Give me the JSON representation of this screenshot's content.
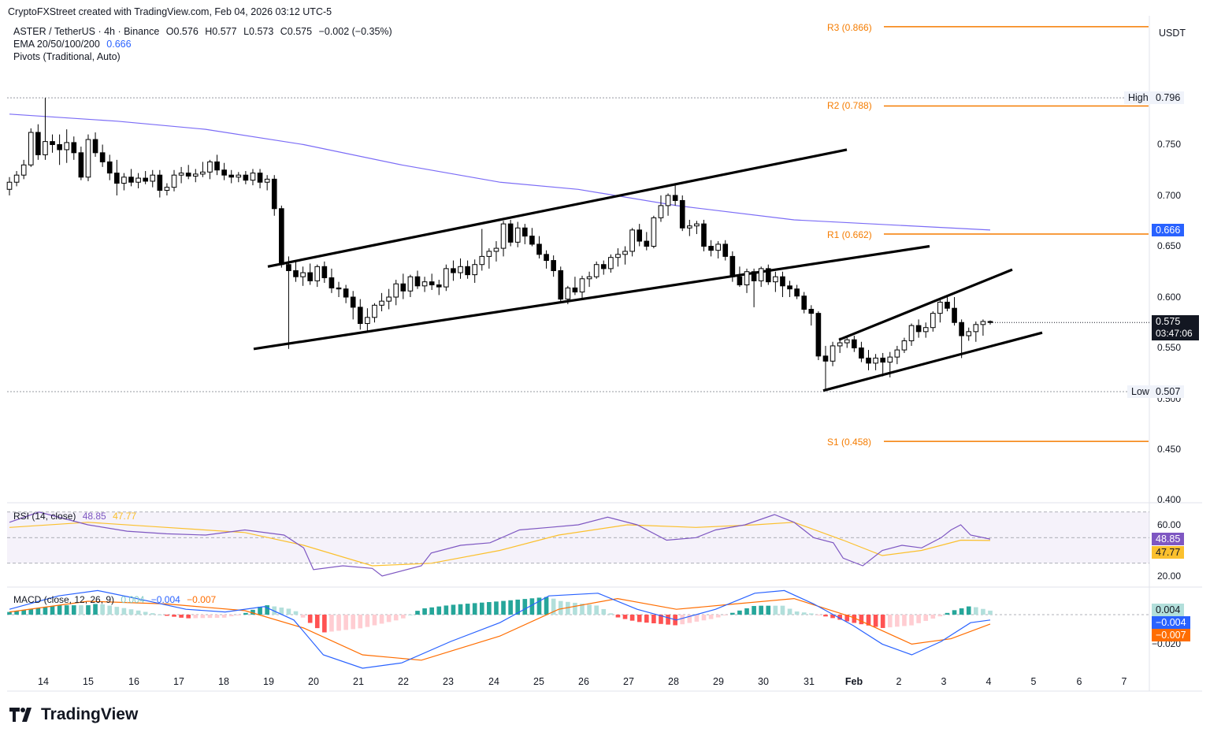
{
  "header": {
    "credit": "CryptoFXStreet created with TradingView.com, Feb 04, 2026 03:12 UTC-5",
    "symbol": "ASTER / TetherUS · 4h · Binance",
    "open": "O0.576",
    "high": "H0.577",
    "low": "L0.573",
    "close": "C0.575",
    "change": "−0.002 (−0.35%)",
    "ema_label": "EMA 20/50/100/200",
    "ema_value": "0.666",
    "pivots_label": "Pivots (Traditional, Auto)"
  },
  "currency": "USDT",
  "price_axis": [
    "0.750",
    "0.700",
    "0.650",
    "0.600",
    "0.550",
    "0.500",
    "0.450",
    "0.400"
  ],
  "rsi_axis": [
    "60.00",
    "20.00"
  ],
  "macd_axis": [
    "−0.020"
  ],
  "pivots": [
    {
      "label": "R3 (0.866)",
      "value": 0.866
    },
    {
      "label": "R2 (0.788)",
      "value": 0.788
    },
    {
      "label": "R1 (0.662)",
      "value": 0.662
    },
    {
      "label": "S1 (0.458)",
      "value": 0.458
    }
  ],
  "badges": {
    "high_label": "High",
    "high_value": "0.796",
    "low_label": "Low",
    "low_value": "0.507",
    "ema_value": "0.666",
    "last_price": "0.575",
    "countdown": "03:47:06",
    "rsi_value": "48.85",
    "rsi_ma": "47.77",
    "macd_hist": "0.004",
    "macd_line": "−0.004",
    "macd_signal": "−0.007"
  },
  "rsi": {
    "label": "RSI (14, close)",
    "value": "48.85",
    "ma": "47.77"
  },
  "macd": {
    "label": "MACD (close, 12, 26, 9)",
    "hist": "0.004",
    "line": "−0.004",
    "signal": "−0.007"
  },
  "x_axis": [
    "14",
    "15",
    "16",
    "17",
    "18",
    "19",
    "20",
    "21",
    "22",
    "23",
    "24",
    "25",
    "26",
    "27",
    "28",
    "29",
    "30",
    "31",
    "Feb",
    "2",
    "3",
    "4",
    "5",
    "6",
    "7"
  ],
  "brand": "TradingView",
  "colors": {
    "bull": "#ffffff",
    "bear": "#000000",
    "ema200": "#7b6cf6",
    "pivot": "#f57c00",
    "rsi": "#7e57c2",
    "rsi_ma": "#fbc02d",
    "macd": "#2962ff",
    "signal": "#ff6d00",
    "hist_pos": "#26a69a",
    "hist_pos_light": "#b2dfdb",
    "hist_neg": "#ff5252",
    "hist_neg_light": "#ffcdd2"
  },
  "chart_data": {
    "type": "candlestick",
    "timeframe": "4h",
    "ylim": [
      0.4,
      0.87
    ],
    "x_range": [
      "Jan 13",
      "Feb 7"
    ],
    "ohlc": [
      [
        0.706,
        0.718,
        0.7,
        0.713
      ],
      [
        0.713,
        0.724,
        0.709,
        0.72
      ],
      [
        0.72,
        0.735,
        0.716,
        0.73
      ],
      [
        0.73,
        0.766,
        0.728,
        0.762
      ],
      [
        0.762,
        0.77,
        0.735,
        0.74
      ],
      [
        0.74,
        0.796,
        0.735,
        0.753
      ],
      [
        0.753,
        0.76,
        0.742,
        0.75
      ],
      [
        0.75,
        0.76,
        0.73,
        0.745
      ],
      [
        0.745,
        0.765,
        0.732,
        0.752
      ],
      [
        0.752,
        0.758,
        0.735,
        0.742
      ],
      [
        0.742,
        0.748,
        0.715,
        0.718
      ],
      [
        0.718,
        0.76,
        0.714,
        0.755
      ],
      [
        0.755,
        0.762,
        0.738,
        0.742
      ],
      [
        0.742,
        0.75,
        0.728,
        0.733
      ],
      [
        0.733,
        0.74,
        0.715,
        0.722
      ],
      [
        0.722,
        0.735,
        0.7,
        0.712
      ],
      [
        0.712,
        0.722,
        0.705,
        0.718
      ],
      [
        0.718,
        0.726,
        0.709,
        0.713
      ],
      [
        0.713,
        0.722,
        0.707,
        0.717
      ],
      [
        0.717,
        0.724,
        0.711,
        0.714
      ],
      [
        0.714,
        0.725,
        0.708,
        0.72
      ],
      [
        0.72,
        0.725,
        0.698,
        0.705
      ],
      [
        0.705,
        0.712,
        0.7,
        0.708
      ],
      [
        0.708,
        0.725,
        0.704,
        0.72
      ],
      [
        0.72,
        0.728,
        0.712,
        0.722
      ],
      [
        0.722,
        0.73,
        0.716,
        0.719
      ],
      [
        0.719,
        0.726,
        0.713,
        0.721
      ],
      [
        0.721,
        0.733,
        0.718,
        0.723
      ],
      [
        0.723,
        0.735,
        0.716,
        0.733
      ],
      [
        0.733,
        0.74,
        0.72,
        0.725
      ],
      [
        0.725,
        0.732,
        0.715,
        0.72
      ],
      [
        0.72,
        0.725,
        0.712,
        0.718
      ],
      [
        0.718,
        0.723,
        0.713,
        0.72
      ],
      [
        0.72,
        0.724,
        0.711,
        0.715
      ],
      [
        0.715,
        0.726,
        0.71,
        0.722
      ],
      [
        0.722,
        0.726,
        0.707,
        0.713
      ],
      [
        0.713,
        0.72,
        0.705,
        0.716
      ],
      [
        0.716,
        0.72,
        0.68,
        0.687
      ],
      [
        0.687,
        0.69,
        0.629,
        0.632
      ],
      [
        0.632,
        0.64,
        0.549,
        0.626
      ],
      [
        0.626,
        0.635,
        0.615,
        0.62
      ],
      [
        0.62,
        0.63,
        0.611,
        0.624
      ],
      [
        0.624,
        0.633,
        0.612,
        0.616
      ],
      [
        0.616,
        0.632,
        0.61,
        0.63
      ],
      [
        0.63,
        0.635,
        0.614,
        0.619
      ],
      [
        0.619,
        0.628,
        0.604,
        0.609
      ],
      [
        0.609,
        0.615,
        0.6,
        0.608
      ],
      [
        0.608,
        0.612,
        0.594,
        0.6
      ],
      [
        0.6,
        0.606,
        0.578,
        0.59
      ],
      [
        0.59,
        0.598,
        0.568,
        0.574
      ],
      [
        0.574,
        0.589,
        0.566,
        0.58
      ],
      [
        0.58,
        0.594,
        0.575,
        0.592
      ],
      [
        0.592,
        0.604,
        0.586,
        0.596
      ],
      [
        0.596,
        0.608,
        0.588,
        0.6
      ],
      [
        0.6,
        0.617,
        0.592,
        0.613
      ],
      [
        0.613,
        0.623,
        0.598,
        0.606
      ],
      [
        0.606,
        0.622,
        0.6,
        0.62
      ],
      [
        0.62,
        0.626,
        0.608,
        0.611
      ],
      [
        0.611,
        0.62,
        0.605,
        0.615
      ],
      [
        0.615,
        0.623,
        0.607,
        0.612
      ],
      [
        0.612,
        0.617,
        0.602,
        0.61
      ],
      [
        0.61,
        0.632,
        0.606,
        0.628
      ],
      [
        0.628,
        0.636,
        0.616,
        0.624
      ],
      [
        0.624,
        0.638,
        0.618,
        0.63
      ],
      [
        0.63,
        0.636,
        0.618,
        0.622
      ],
      [
        0.622,
        0.637,
        0.614,
        0.632
      ],
      [
        0.632,
        0.667,
        0.626,
        0.64
      ],
      [
        0.64,
        0.648,
        0.628,
        0.645
      ],
      [
        0.645,
        0.655,
        0.635,
        0.648
      ],
      [
        0.648,
        0.675,
        0.64,
        0.672
      ],
      [
        0.672,
        0.676,
        0.65,
        0.654
      ],
      [
        0.654,
        0.674,
        0.649,
        0.668
      ],
      [
        0.668,
        0.672,
        0.652,
        0.66
      ],
      [
        0.66,
        0.668,
        0.65,
        0.652
      ],
      [
        0.652,
        0.66,
        0.638,
        0.642
      ],
      [
        0.642,
        0.646,
        0.628,
        0.636
      ],
      [
        0.636,
        0.641,
        0.62,
        0.626
      ],
      [
        0.626,
        0.63,
        0.595,
        0.598
      ],
      [
        0.598,
        0.611,
        0.593,
        0.609
      ],
      [
        0.609,
        0.62,
        0.602,
        0.605
      ],
      [
        0.605,
        0.621,
        0.599,
        0.618
      ],
      [
        0.618,
        0.625,
        0.61,
        0.62
      ],
      [
        0.62,
        0.635,
        0.618,
        0.632
      ],
      [
        0.632,
        0.636,
        0.622,
        0.628
      ],
      [
        0.628,
        0.642,
        0.624,
        0.639
      ],
      [
        0.639,
        0.648,
        0.63,
        0.642
      ],
      [
        0.642,
        0.65,
        0.632,
        0.645
      ],
      [
        0.645,
        0.668,
        0.64,
        0.666
      ],
      [
        0.666,
        0.672,
        0.65,
        0.655
      ],
      [
        0.655,
        0.664,
        0.646,
        0.65
      ],
      [
        0.65,
        0.68,
        0.648,
        0.678
      ],
      [
        0.678,
        0.7,
        0.674,
        0.69
      ],
      [
        0.69,
        0.702,
        0.68,
        0.7
      ],
      [
        0.7,
        0.712,
        0.69,
        0.695
      ],
      [
        0.695,
        0.7,
        0.665,
        0.668
      ],
      [
        0.668,
        0.676,
        0.66,
        0.67
      ],
      [
        0.67,
        0.675,
        0.662,
        0.672
      ],
      [
        0.672,
        0.676,
        0.645,
        0.65
      ],
      [
        0.65,
        0.656,
        0.64,
        0.646
      ],
      [
        0.646,
        0.655,
        0.638,
        0.652
      ],
      [
        0.652,
        0.656,
        0.636,
        0.64
      ],
      [
        0.64,
        0.645,
        0.615,
        0.62
      ],
      [
        0.62,
        0.63,
        0.61,
        0.612
      ],
      [
        0.612,
        0.628,
        0.604,
        0.625
      ],
      [
        0.625,
        0.628,
        0.59,
        0.616
      ],
      [
        0.616,
        0.63,
        0.61,
        0.628
      ],
      [
        0.628,
        0.632,
        0.612,
        0.615
      ],
      [
        0.615,
        0.625,
        0.605,
        0.62
      ],
      [
        0.62,
        0.625,
        0.6,
        0.611
      ],
      [
        0.611,
        0.616,
        0.6,
        0.608
      ],
      [
        0.608,
        0.612,
        0.598,
        0.601
      ],
      [
        0.601,
        0.605,
        0.584,
        0.588
      ],
      [
        0.588,
        0.592,
        0.572,
        0.584
      ],
      [
        0.584,
        0.586,
        0.538,
        0.542
      ],
      [
        0.542,
        0.552,
        0.508,
        0.537
      ],
      [
        0.537,
        0.556,
        0.532,
        0.552
      ],
      [
        0.552,
        0.56,
        0.545,
        0.555
      ],
      [
        0.555,
        0.562,
        0.55,
        0.558
      ],
      [
        0.558,
        0.562,
        0.546,
        0.55
      ],
      [
        0.55,
        0.556,
        0.536,
        0.54
      ],
      [
        0.54,
        0.548,
        0.528,
        0.535
      ],
      [
        0.535,
        0.544,
        0.528,
        0.54
      ],
      [
        0.54,
        0.545,
        0.522,
        0.536
      ],
      [
        0.536,
        0.546,
        0.521,
        0.541
      ],
      [
        0.541,
        0.552,
        0.534,
        0.548
      ],
      [
        0.548,
        0.56,
        0.545,
        0.557
      ],
      [
        0.557,
        0.574,
        0.552,
        0.572
      ],
      [
        0.572,
        0.578,
        0.56,
        0.566
      ],
      [
        0.566,
        0.575,
        0.56,
        0.57
      ],
      [
        0.57,
        0.586,
        0.566,
        0.584
      ],
      [
        0.584,
        0.598,
        0.575,
        0.595
      ],
      [
        0.595,
        0.601,
        0.586,
        0.589
      ],
      [
        0.589,
        0.6,
        0.572,
        0.575
      ],
      [
        0.575,
        0.578,
        0.54,
        0.562
      ],
      [
        0.562,
        0.57,
        0.557,
        0.566
      ],
      [
        0.566,
        0.576,
        0.556,
        0.573
      ],
      [
        0.573,
        0.578,
        0.562,
        0.576
      ],
      [
        0.576,
        0.577,
        0.573,
        0.575
      ]
    ],
    "ema200": [
      [
        0,
        0.78
      ],
      [
        0.11,
        0.773
      ],
      [
        0.2,
        0.765
      ],
      [
        0.3,
        0.75
      ],
      [
        0.4,
        0.73
      ],
      [
        0.5,
        0.713
      ],
      [
        0.58,
        0.706
      ],
      [
        0.68,
        0.69
      ],
      [
        0.8,
        0.676
      ],
      [
        1.0,
        0.666
      ]
    ],
    "annotations": [
      "ascending channel Jan 19–Jan 29",
      "rising wedge Jan 31–Feb 4"
    ],
    "rsi_series": [
      [
        0,
        62
      ],
      [
        0.03,
        70
      ],
      [
        0.06,
        64
      ],
      [
        0.08,
        60
      ],
      [
        0.12,
        55
      ],
      [
        0.16,
        53
      ],
      [
        0.2,
        52
      ],
      [
        0.24,
        56
      ],
      [
        0.28,
        52
      ],
      [
        0.3,
        42
      ],
      [
        0.31,
        25
      ],
      [
        0.34,
        28
      ],
      [
        0.37,
        26
      ],
      [
        0.38,
        20
      ],
      [
        0.42,
        28
      ],
      [
        0.43,
        38
      ],
      [
        0.46,
        44
      ],
      [
        0.49,
        46
      ],
      [
        0.52,
        56
      ],
      [
        0.55,
        58
      ],
      [
        0.58,
        60
      ],
      [
        0.61,
        66
      ],
      [
        0.64,
        60
      ],
      [
        0.67,
        48
      ],
      [
        0.7,
        50
      ],
      [
        0.72,
        56
      ],
      [
        0.75,
        60
      ],
      [
        0.78,
        68
      ],
      [
        0.8,
        62
      ],
      [
        0.82,
        50
      ],
      [
        0.84,
        46
      ],
      [
        0.85,
        34
      ],
      [
        0.87,
        28
      ],
      [
        0.89,
        40
      ],
      [
        0.91,
        44
      ],
      [
        0.93,
        42
      ],
      [
        0.95,
        50
      ],
      [
        0.96,
        56
      ],
      [
        0.97,
        60
      ],
      [
        0.98,
        52
      ],
      [
        1.0,
        48.85
      ]
    ],
    "rsi_ma_series": [
      [
        0,
        58
      ],
      [
        0.08,
        62
      ],
      [
        0.16,
        58
      ],
      [
        0.24,
        54
      ],
      [
        0.3,
        44
      ],
      [
        0.37,
        28
      ],
      [
        0.43,
        30
      ],
      [
        0.5,
        40
      ],
      [
        0.56,
        52
      ],
      [
        0.63,
        60
      ],
      [
        0.7,
        58
      ],
      [
        0.76,
        60
      ],
      [
        0.8,
        62
      ],
      [
        0.85,
        48
      ],
      [
        0.89,
        36
      ],
      [
        0.93,
        40
      ],
      [
        0.97,
        48
      ],
      [
        1.0,
        47.77
      ]
    ],
    "macd_series": [
      [
        0,
        0.004
      ],
      [
        0.05,
        0.014
      ],
      [
        0.09,
        0.018
      ],
      [
        0.13,
        0.012
      ],
      [
        0.18,
        0.004
      ],
      [
        0.22,
        0.002
      ],
      [
        0.26,
        0.006
      ],
      [
        0.29,
        -0.004
      ],
      [
        0.32,
        -0.03
      ],
      [
        0.36,
        -0.04
      ],
      [
        0.4,
        -0.036
      ],
      [
        0.45,
        -0.02
      ],
      [
        0.5,
        -0.006
      ],
      [
        0.55,
        0.014
      ],
      [
        0.6,
        0.016
      ],
      [
        0.64,
        0.004
      ],
      [
        0.68,
        -0.004
      ],
      [
        0.72,
        0.004
      ],
      [
        0.76,
        0.016
      ],
      [
        0.79,
        0.018
      ],
      [
        0.82,
        0.008
      ],
      [
        0.86,
        -0.008
      ],
      [
        0.89,
        -0.022
      ],
      [
        0.92,
        -0.03
      ],
      [
        0.95,
        -0.02
      ],
      [
        0.98,
        -0.006
      ],
      [
        1.0,
        -0.004
      ]
    ],
    "signal_series": [
      [
        0,
        0.002
      ],
      [
        0.08,
        0.01
      ],
      [
        0.16,
        0.008
      ],
      [
        0.24,
        0.003
      ],
      [
        0.3,
        -0.01
      ],
      [
        0.36,
        -0.03
      ],
      [
        0.42,
        -0.034
      ],
      [
        0.5,
        -0.016
      ],
      [
        0.56,
        0.004
      ],
      [
        0.62,
        0.012
      ],
      [
        0.68,
        0.004
      ],
      [
        0.74,
        0.008
      ],
      [
        0.8,
        0.012
      ],
      [
        0.86,
        -0.002
      ],
      [
        0.92,
        -0.022
      ],
      [
        0.96,
        -0.018
      ],
      [
        1.0,
        -0.007
      ]
    ]
  }
}
